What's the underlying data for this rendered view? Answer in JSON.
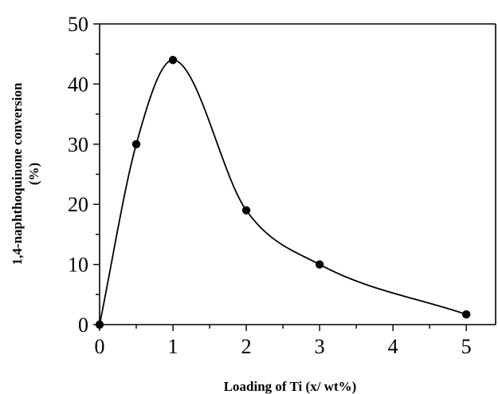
{
  "chart_data": {
    "type": "line",
    "title": "",
    "xlabel": "Loading of Ti (x/ wt%)",
    "ylabel": "1,4-naphthoquinone conversion",
    "ylabel_unit": "(%)",
    "xlim": [
      0,
      5.4
    ],
    "ylim": [
      0,
      50
    ],
    "x_ticks": [
      0,
      1,
      2,
      3,
      4,
      5
    ],
    "x_tick_labels": [
      "0",
      "1",
      "2",
      "3",
      "4",
      "5"
    ],
    "y_ticks": [
      0,
      10,
      20,
      30,
      40,
      50
    ],
    "y_tick_labels": [
      "0",
      "10",
      "20",
      "30",
      "40",
      "50"
    ],
    "grid": false,
    "series": [
      {
        "x": [
          0,
          0.5,
          1,
          2,
          3,
          5
        ],
        "y": [
          0,
          30,
          44,
          19,
          10,
          1.7
        ],
        "marker": "circle",
        "color": "#000000",
        "smooth": true
      }
    ]
  }
}
